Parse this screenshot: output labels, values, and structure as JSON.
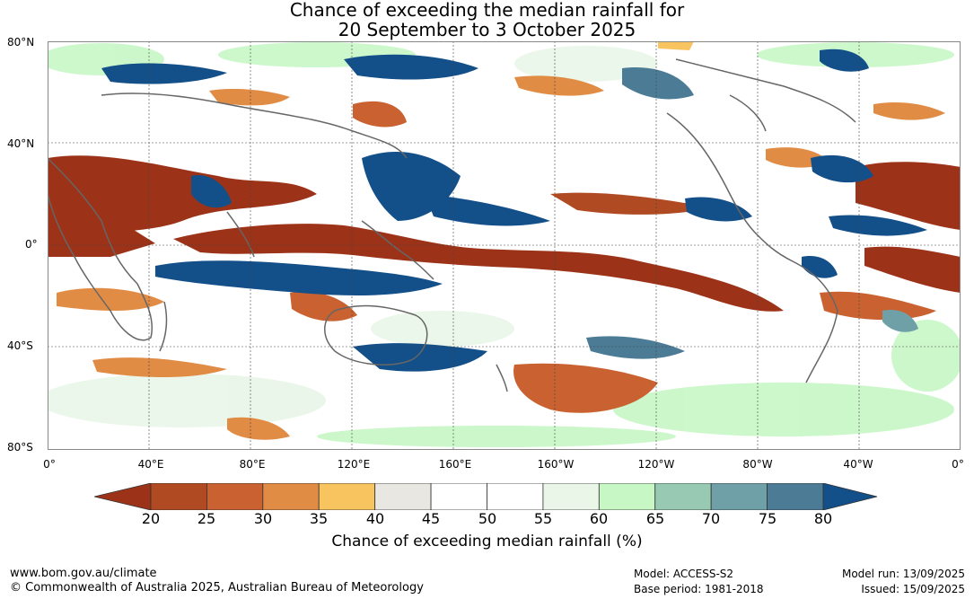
{
  "title": {
    "line1": "Chance of exceeding the median rainfall for",
    "line2": "20 September to 3 October 2025"
  },
  "lat_labels": [
    "80°N",
    "40°N",
    "0°",
    "40°S",
    "80°S"
  ],
  "lon_labels": [
    "0°",
    "40°E",
    "80°E",
    "120°E",
    "160°E",
    "160°W",
    "120°W",
    "80°W",
    "40°W",
    "0°"
  ],
  "colorbar": {
    "ticks": [
      "20",
      "25",
      "30",
      "35",
      "40",
      "45",
      "50",
      "55",
      "60",
      "65",
      "70",
      "75",
      "80"
    ],
    "label": "Chance of exceeding median rainfall (%)",
    "colors": [
      "#9c3319",
      "#b04a23",
      "#c96230",
      "#e18c45",
      "#f8c45f",
      "#e9e7e2",
      "#ffffff",
      "#ffffff",
      "#e9f6e8",
      "#c7f7c5",
      "#98cab3",
      "#6fa0a8",
      "#4c7b96",
      "#134f89"
    ]
  },
  "footer": {
    "url": "www.bom.gov.au/climate",
    "copyright": "© Commonwealth of Australia 2025, Australian Bureau of Meteorology",
    "model": "Model: ACCESS-S2",
    "base_period": "Base period: 1981-2018",
    "model_run": "Model run: 13/09/2025",
    "issued": "Issued: 15/09/2025"
  }
}
